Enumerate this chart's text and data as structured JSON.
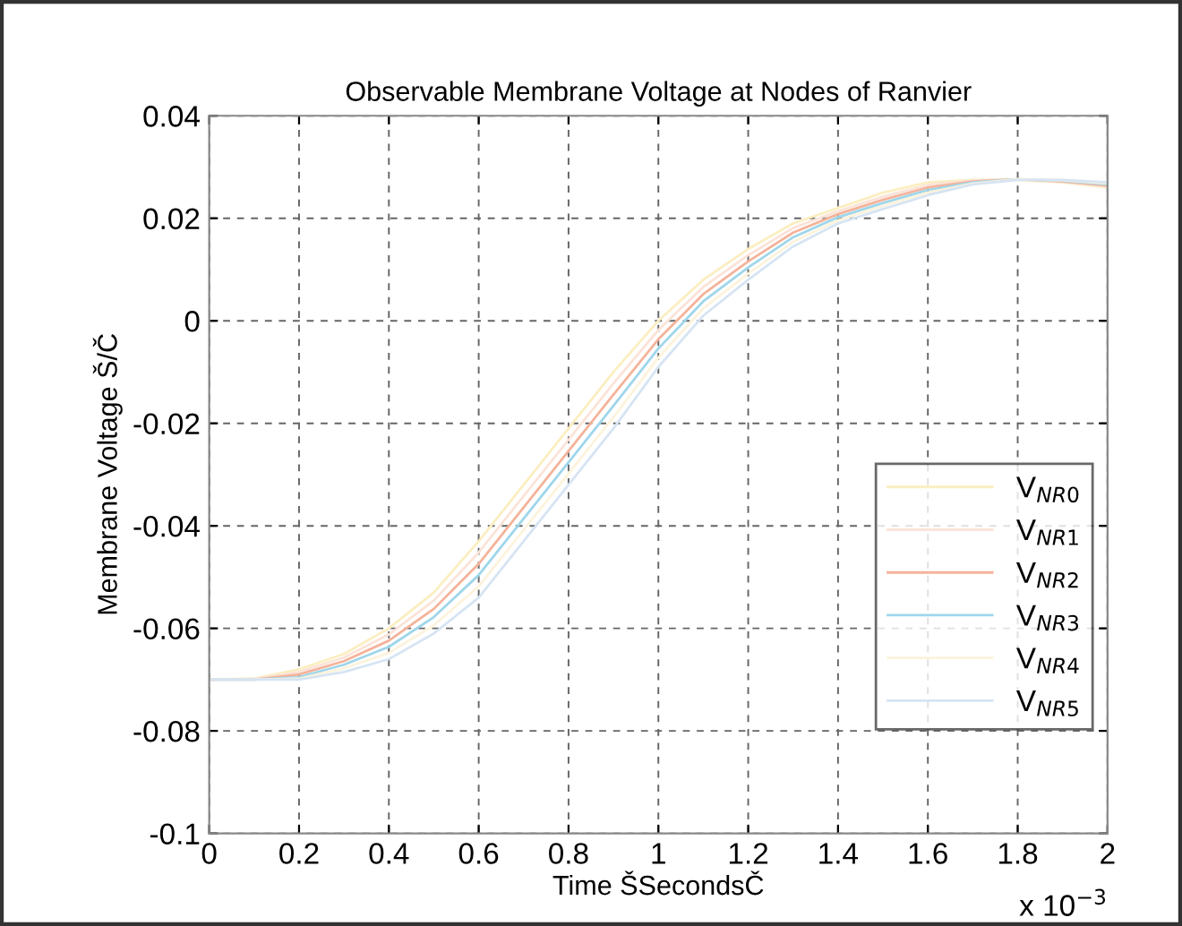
{
  "chart_data": {
    "type": "line",
    "title": "Observable Membrane Voltage at Nodes of Ranvier",
    "xlabel": "Time ŠSecondsČ",
    "ylabel": "Membrane Voltage Š/Č",
    "annotations": [
      "x 10$^{−3}$"
    ],
    "x": [
      0,
      0.1,
      0.2,
      0.3,
      0.4,
      0.5,
      0.6,
      0.7,
      0.8,
      0.9,
      1,
      1.1,
      1.2,
      1.3,
      1.4,
      1.5,
      1.6,
      1.7,
      1.8,
      1.9,
      2
    ],
    "series": [
      {
        "name": "V$_{NR0}$",
        "color": "#fbeec0",
        "values": [
          -0.07,
          -0.0698,
          -0.068,
          -0.065,
          -0.06,
          -0.053,
          -0.043,
          -0.032,
          -0.021,
          -0.01,
          0.0,
          0.008,
          0.014,
          0.019,
          0.022,
          0.025,
          0.027,
          0.0275,
          0.0275,
          0.027,
          0.026
        ]
      },
      {
        "name": "V$_{NR1}$",
        "color": "#fbe3d8",
        "values": [
          -0.07,
          -0.0699,
          -0.0685,
          -0.0657,
          -0.0612,
          -0.0546,
          -0.0452,
          -0.0342,
          -0.0232,
          -0.0122,
          -0.0018,
          0.0066,
          0.0128,
          0.0181,
          0.0214,
          0.0242,
          0.0265,
          0.0274,
          0.0276,
          0.0271,
          0.0262
        ]
      },
      {
        "name": "V$_{NR2}$",
        "color": "#f4b39a",
        "values": [
          -0.07,
          -0.07,
          -0.069,
          -0.0664,
          -0.0624,
          -0.0562,
          -0.0474,
          -0.0364,
          -0.0254,
          -0.0144,
          -0.0036,
          0.0052,
          0.0116,
          0.0172,
          0.0208,
          0.0236,
          0.026,
          0.0272,
          0.0276,
          0.0272,
          0.0264
        ]
      },
      {
        "name": "V$_{NR3}$",
        "color": "#9fd6ea",
        "values": [
          -0.07,
          -0.07,
          -0.0695,
          -0.0671,
          -0.0636,
          -0.0578,
          -0.0496,
          -0.0386,
          -0.0276,
          -0.0166,
          -0.0054,
          0.0038,
          0.0104,
          0.0163,
          0.0202,
          0.023,
          0.0255,
          0.027,
          0.0276,
          0.0273,
          0.0266
        ]
      },
      {
        "name": "V$_{NR4}$",
        "color": "#fdf3dc",
        "values": [
          -0.07,
          -0.07,
          -0.0698,
          -0.0678,
          -0.0648,
          -0.0594,
          -0.0518,
          -0.0408,
          -0.0298,
          -0.0188,
          -0.0072,
          0.0024,
          0.0092,
          0.0154,
          0.0196,
          0.0224,
          0.025,
          0.0268,
          0.0276,
          0.0274,
          0.0268
        ]
      },
      {
        "name": "V$_{NR5}$",
        "color": "#d6e4f3",
        "values": [
          -0.07,
          -0.07,
          -0.07,
          -0.0685,
          -0.066,
          -0.061,
          -0.054,
          -0.043,
          -0.032,
          -0.021,
          -0.009,
          0.001,
          0.008,
          0.0145,
          0.019,
          0.0218,
          0.0245,
          0.0266,
          0.0275,
          0.0275,
          0.027
        ]
      }
    ],
    "xlim": [
      0,
      2
    ],
    "xticks": [
      0,
      0.2,
      0.4,
      0.6,
      0.8,
      1,
      1.2,
      1.4,
      1.6,
      1.8,
      2
    ],
    "ylim": [
      -0.1,
      0.04
    ],
    "yticks": [
      -0.1,
      -0.08,
      -0.06,
      -0.04,
      -0.02,
      0,
      0.02,
      0.04
    ],
    "grid": true,
    "legend": "right",
    "marker": "none",
    "line_style": "solid"
  }
}
